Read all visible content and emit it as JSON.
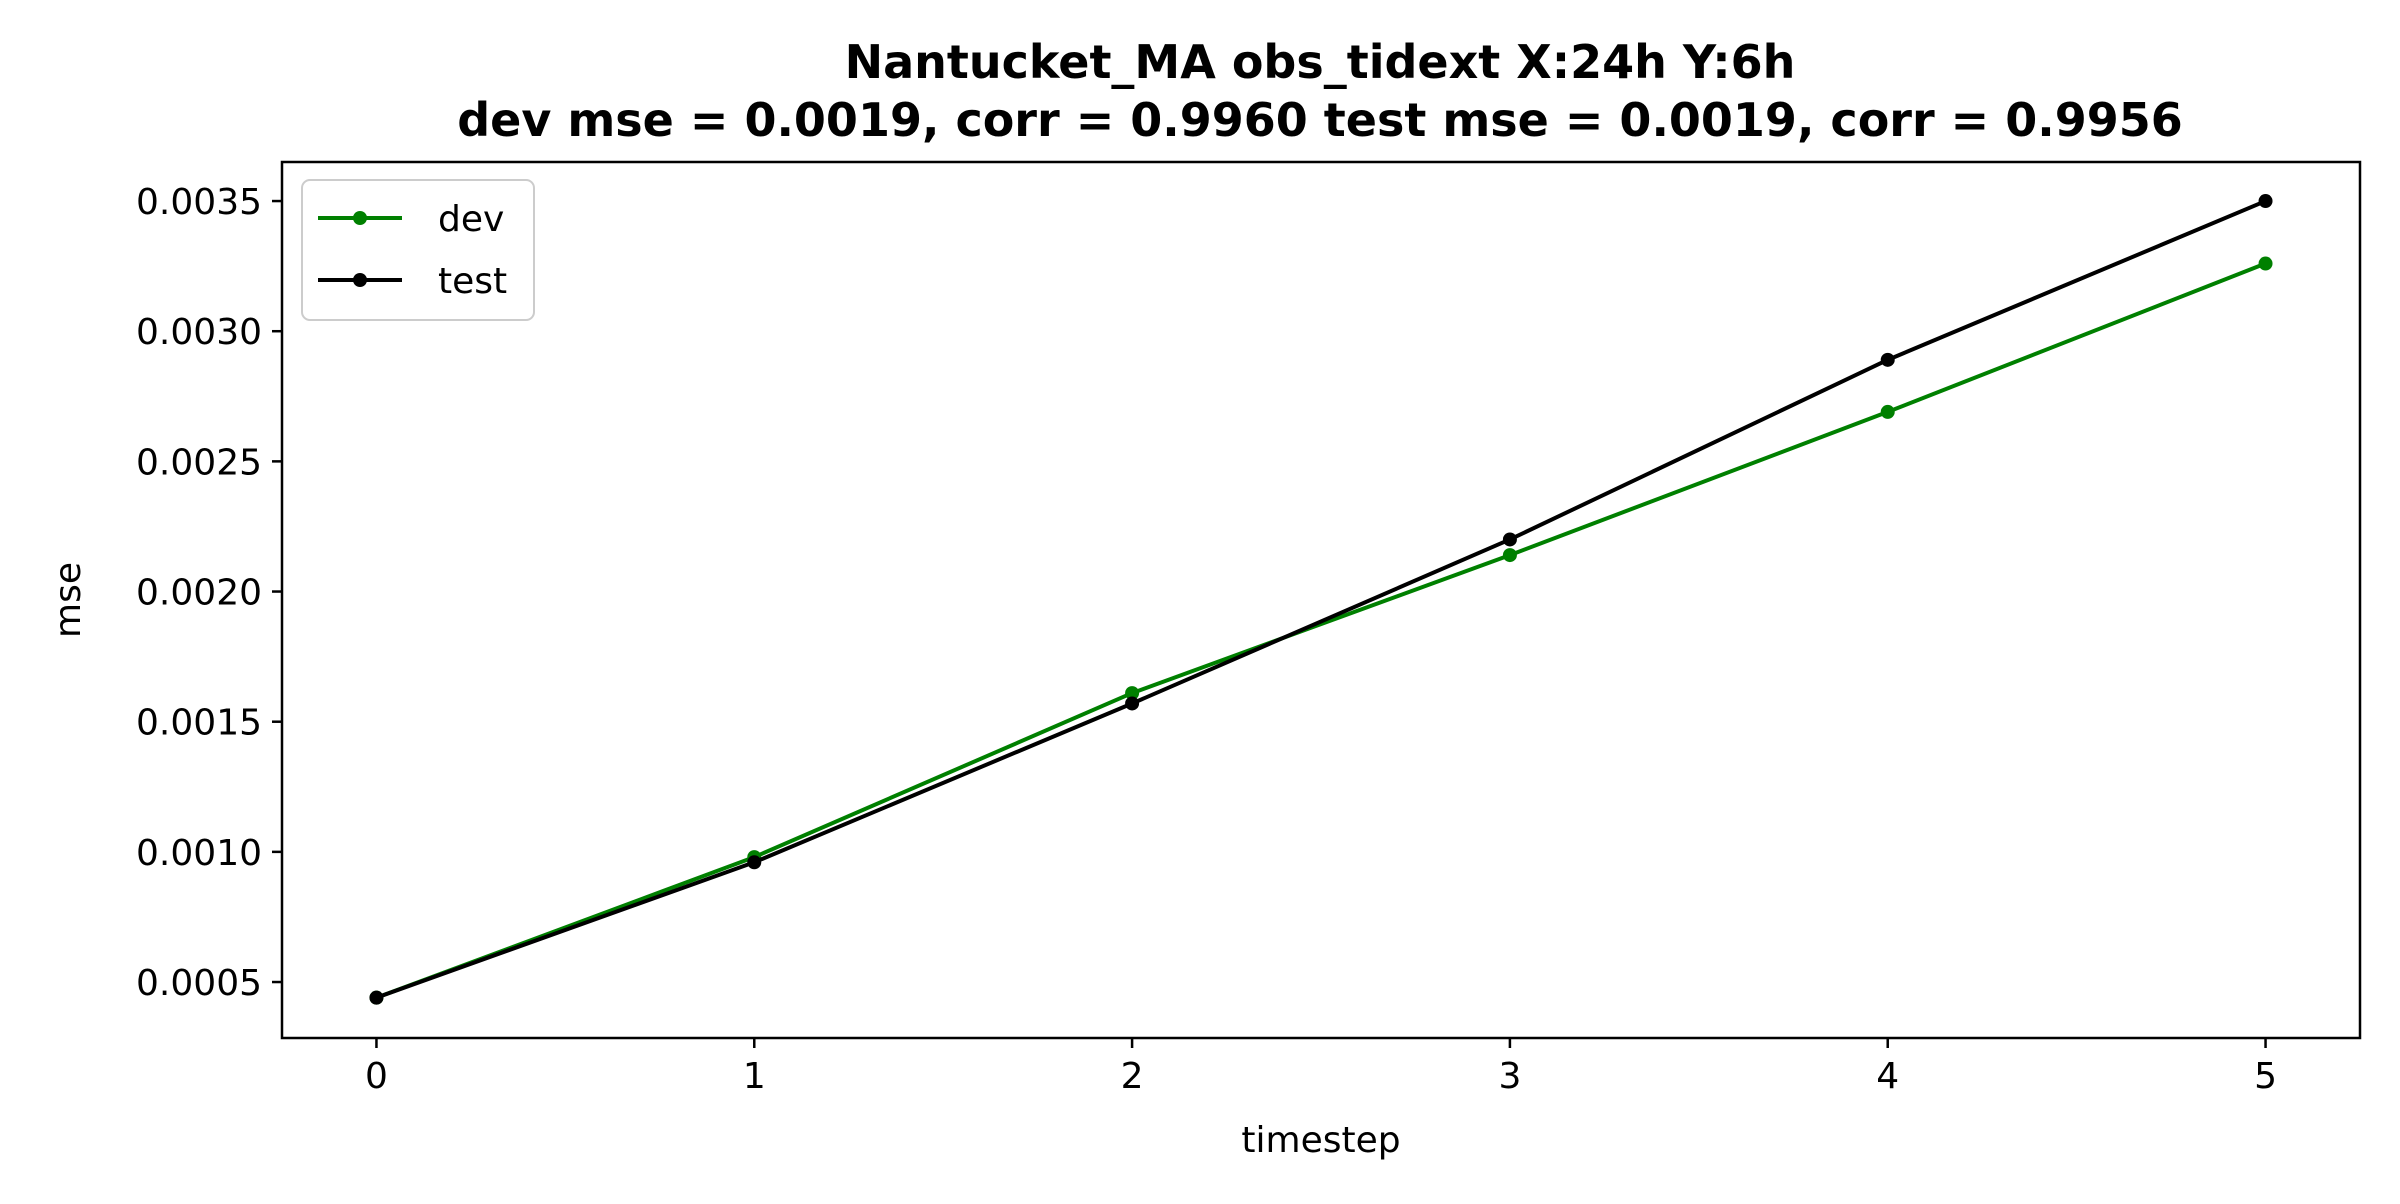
{
  "chart_data": {
    "type": "line",
    "title": "Nantucket_MA   obs_tidext   X:24h   Y:6h",
    "subtitle": "dev mse = 0.0019, corr = 0.9960   test mse = 0.0019, corr = 0.9956",
    "xlabel": "timestep",
    "ylabel": "mse",
    "x": [
      0,
      1,
      2,
      3,
      4,
      5
    ],
    "xticks": [
      "0",
      "1",
      "2",
      "3",
      "4",
      "5"
    ],
    "yticks": [
      "0.0005",
      "0.0010",
      "0.0015",
      "0.0020",
      "0.0025",
      "0.0030",
      "0.0035"
    ],
    "xlim": [
      -0.25,
      5.25
    ],
    "ylim": [
      0.000285,
      0.00365
    ],
    "grid": false,
    "legend_position": "top-left",
    "series": [
      {
        "name": "dev",
        "color": "#008000",
        "values": [
          0.00044,
          0.00098,
          0.00161,
          0.00214,
          0.00269,
          0.00326
        ]
      },
      {
        "name": "test",
        "color": "#000000",
        "values": [
          0.00044,
          0.00096,
          0.00157,
          0.0022,
          0.00289,
          0.0035
        ]
      }
    ]
  }
}
